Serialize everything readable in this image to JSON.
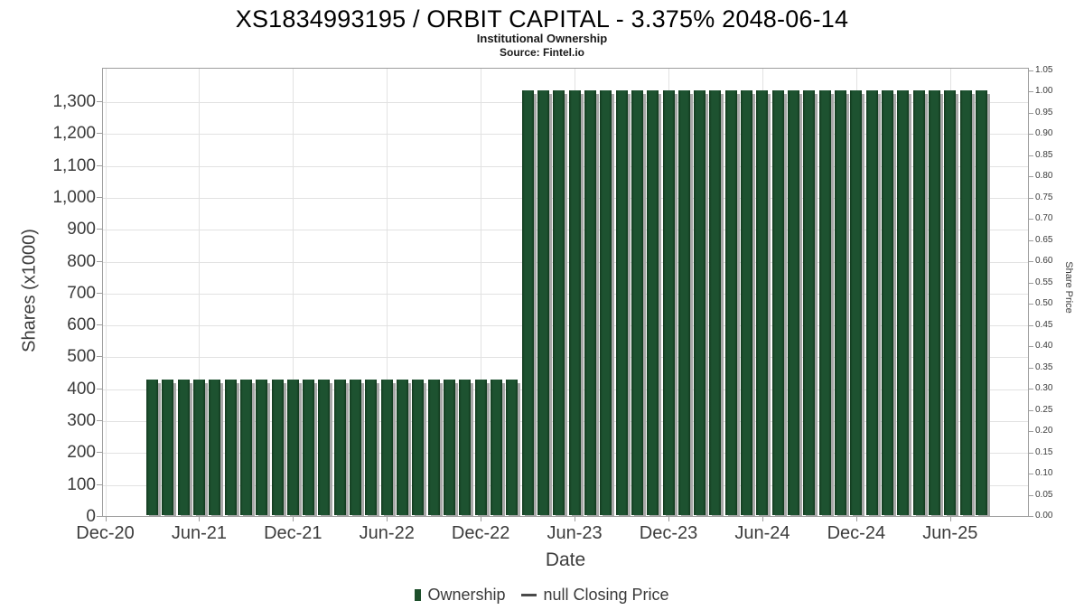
{
  "header": {
    "title": "XS1834993195 / ORBIT CAPITAL - 3.375% 2048-06-14",
    "subtitle": "Institutional Ownership",
    "source": "Source: Fintel.io"
  },
  "axes": {
    "x_label": "Date",
    "y_left_label": "Shares (x1000)",
    "y_right_label": "Share Price",
    "x_tick_labels": [
      "Dec-20",
      "Jun-21",
      "Dec-21",
      "Jun-22",
      "Dec-22",
      "Jun-23",
      "Dec-23",
      "Jun-24",
      "Dec-24",
      "Jun-25"
    ],
    "y_left_tick_labels": [
      "0",
      "100",
      "200",
      "300",
      "400",
      "500",
      "600",
      "700",
      "800",
      "900",
      "1,000",
      "1,100",
      "1,200",
      "1,300"
    ],
    "y_right_tick_labels": [
      "0.00",
      "0.05",
      "0.10",
      "0.15",
      "0.20",
      "0.25",
      "0.30",
      "0.35",
      "0.40",
      "0.45",
      "0.50",
      "0.55",
      "0.60",
      "0.65",
      "0.70",
      "0.75",
      "0.80",
      "0.85",
      "0.90",
      "0.95",
      "1.00",
      "1.05"
    ]
  },
  "legend": {
    "ownership_label": "Ownership",
    "price_label": "null Closing Price"
  },
  "colors": {
    "bar_green": "#1d5230",
    "bar_edge_green": "#123a1e",
    "bar_shadow_gray": "#a8a8a8",
    "grid_gray": "#e2e2e2",
    "axis_gray": "#9e9e9e",
    "text_gray": "#3c3c3c"
  },
  "chart_data": {
    "type": "bar",
    "title": "XS1834993195 / ORBIT CAPITAL - 3.375% 2048-06-14",
    "subtitle": "Institutional Ownership",
    "xlabel": "Date",
    "ylabel_left": "Shares (x1000)",
    "ylabel_right": "Share Price",
    "ylim_left": [
      0,
      1400
    ],
    "ylim_right": [
      0,
      1.05
    ],
    "grid": true,
    "legend_position": "bottom",
    "x": [
      "Mar-21",
      "Apr-21",
      "May-21",
      "Jun-21",
      "Jul-21",
      "Aug-21",
      "Sep-21",
      "Oct-21",
      "Nov-21",
      "Dec-21",
      "Jan-22",
      "Feb-22",
      "Mar-22",
      "Apr-22",
      "May-22",
      "Jun-22",
      "Jul-22",
      "Aug-22",
      "Sep-22",
      "Oct-22",
      "Nov-22",
      "Dec-22",
      "Jan-23",
      "Feb-23",
      "Mar-23",
      "Apr-23",
      "May-23",
      "Jun-23",
      "Jul-23",
      "Aug-23",
      "Sep-23",
      "Oct-23",
      "Nov-23",
      "Dec-23",
      "Jan-24",
      "Feb-24",
      "Mar-24",
      "Apr-24",
      "May-24",
      "Jun-24",
      "Jul-24",
      "Aug-24",
      "Sep-24",
      "Oct-24",
      "Nov-24",
      "Dec-24",
      "Jan-25",
      "Feb-25",
      "Mar-25",
      "Apr-25",
      "May-25",
      "Jun-25",
      "Jul-25",
      "Aug-25"
    ],
    "series": [
      {
        "name": "Ownership",
        "type": "bar",
        "axis": "left",
        "values": [
          425,
          425,
          425,
          425,
          425,
          425,
          425,
          425,
          425,
          425,
          425,
          425,
          425,
          425,
          425,
          425,
          425,
          425,
          425,
          425,
          425,
          425,
          425,
          425,
          1330,
          1330,
          1330,
          1330,
          1330,
          1330,
          1330,
          1330,
          1330,
          1330,
          1330,
          1330,
          1330,
          1330,
          1330,
          1330,
          1330,
          1330,
          1330,
          1330,
          1330,
          1330,
          1330,
          1330,
          1330,
          1330,
          1330,
          1330,
          1330,
          1330
        ]
      },
      {
        "name": "null Closing Price",
        "type": "line",
        "axis": "right",
        "values": []
      }
    ]
  }
}
